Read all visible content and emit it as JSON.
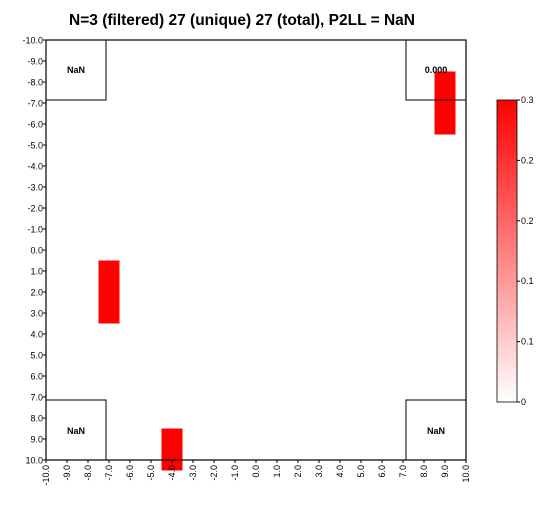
{
  "chart_data": {
    "type": "heatmap",
    "title": "N=3 (filtered) 27 (unique) 27 (total), P2LL = NaN",
    "x_ticks": [
      "-10.0",
      "-9.0",
      "-8.0",
      "-7.0",
      "-6.0",
      "-5.0",
      "-4.0",
      "-3.0",
      "-2.0",
      "-1.0",
      "0.0",
      "1.0",
      "2.0",
      "3.0",
      "4.0",
      "5.0",
      "6.0",
      "7.0",
      "8.0",
      "9.0",
      "10.0"
    ],
    "y_ticks": [
      "-10.0",
      "-9.0",
      "-8.0",
      "-7.0",
      "-6.0",
      "-5.0",
      "-4.0",
      "-3.0",
      "-2.0",
      "-1.0",
      "0.0",
      "1.0",
      "2.0",
      "3.0",
      "4.0",
      "5.0",
      "6.0",
      "7.0",
      "8.0",
      "9.0",
      "10.0"
    ],
    "xlim": [
      -10,
      10
    ],
    "ylim": [
      -10,
      10
    ],
    "y_direction": "down",
    "cells": [
      {
        "x": -7,
        "y_from": 0.5,
        "y_to": 3.5,
        "value": 0.3
      },
      {
        "x": 9,
        "y_from": -8.5,
        "y_to": -5.5,
        "value": 0.3
      },
      {
        "x": -4,
        "y_from": 8.5,
        "y_to": 10.5,
        "value": 0.3
      }
    ],
    "corner_boxes": [
      {
        "corner": "top-left",
        "label": "NaN"
      },
      {
        "corner": "top-right",
        "label": "0.000"
      },
      {
        "corner": "bottom-left",
        "label": "NaN"
      },
      {
        "corner": "bottom-right",
        "label": "NaN"
      }
    ],
    "colorbar": {
      "ticks": [
        "0",
        "0.1",
        "0.1",
        "0.2",
        "0.2",
        "0.3"
      ],
      "tick_values": [
        0,
        0.06,
        0.12,
        0.18,
        0.24,
        0.3
      ],
      "min": 0,
      "max": 0.3,
      "color_low": "#ffffff",
      "color_high": "#ff0000"
    },
    "cell_color": "#ff0000",
    "grid": false
  }
}
